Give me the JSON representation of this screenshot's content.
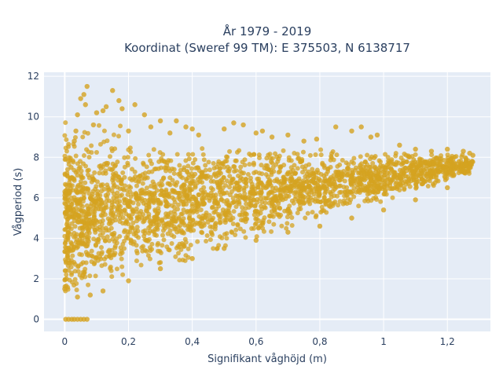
{
  "chart_data": {
    "type": "scatter",
    "title_line1": "År 1979 - 2019",
    "title_line2": "Koordinat (Sweref 99 TM): E 375503, N 6138717",
    "xlabel": "Signifikant våghöjd (m)",
    "ylabel": "Vågperiod (s)",
    "xlim": [
      -0.065,
      1.335
    ],
    "ylim": [
      -0.6,
      12.2
    ],
    "x_ticks": [
      0,
      0.2,
      0.4,
      0.6,
      0.8,
      1.0,
      1.2
    ],
    "x_tick_labels": [
      "0",
      "0,2",
      "0,4",
      "0,6",
      "0,8",
      "1",
      "1,2"
    ],
    "y_ticks": [
      0,
      2,
      4,
      6,
      8,
      10,
      12
    ],
    "y_tick_labels": [
      "0",
      "2",
      "4",
      "6",
      "8",
      "10",
      "12"
    ],
    "grid": true,
    "legend": "none",
    "marker_color": "#d4a320",
    "plot_background": "#e5ecf6",
    "points": [
      [
        0.003,
        0.0
      ],
      [
        0.012,
        0.0
      ],
      [
        0.022,
        0.0
      ],
      [
        0.03,
        0.0
      ],
      [
        0.04,
        0.0
      ],
      [
        0.05,
        0.0
      ],
      [
        0.06,
        0.0
      ],
      [
        0.07,
        0.0
      ],
      [
        0.0,
        1.5
      ],
      [
        0.005,
        2.0
      ],
      [
        0.01,
        3.3
      ],
      [
        0.012,
        4.6
      ],
      [
        0.015,
        6.3
      ],
      [
        0.02,
        7.5
      ],
      [
        0.03,
        8.8
      ],
      [
        0.035,
        9.3
      ],
      [
        0.04,
        10.1
      ],
      [
        0.05,
        10.9
      ],
      [
        0.06,
        11.1
      ],
      [
        0.065,
        10.6
      ],
      [
        0.07,
        11.5
      ],
      [
        0.09,
        9.6
      ],
      [
        0.1,
        10.2
      ],
      [
        0.12,
        10.3
      ],
      [
        0.13,
        10.5
      ],
      [
        0.15,
        11.3
      ],
      [
        0.17,
        10.8
      ],
      [
        0.18,
        10.4
      ],
      [
        0.2,
        9.3
      ],
      [
        0.22,
        10.6
      ],
      [
        0.25,
        10.1
      ],
      [
        0.27,
        9.5
      ],
      [
        0.3,
        9.8
      ],
      [
        0.33,
        9.2
      ],
      [
        0.35,
        9.8
      ],
      [
        0.38,
        9.5
      ],
      [
        0.4,
        9.4
      ],
      [
        0.42,
        9.1
      ],
      [
        0.5,
        9.4
      ],
      [
        0.53,
        9.7
      ],
      [
        0.56,
        9.6
      ],
      [
        0.6,
        9.2
      ],
      [
        0.62,
        9.3
      ],
      [
        0.65,
        9.0
      ],
      [
        0.7,
        9.1
      ],
      [
        0.75,
        8.8
      ],
      [
        0.79,
        8.9
      ],
      [
        0.85,
        9.5
      ],
      [
        0.9,
        9.3
      ],
      [
        0.93,
        9.5
      ],
      [
        0.96,
        9.0
      ],
      [
        0.98,
        9.1
      ],
      [
        1.05,
        8.6
      ],
      [
        1.1,
        8.4
      ],
      [
        1.15,
        8.3
      ],
      [
        1.2,
        8.4
      ],
      [
        1.25,
        8.3
      ],
      [
        1.27,
        8.2
      ],
      [
        0.04,
        1.1
      ],
      [
        0.08,
        1.2
      ],
      [
        0.12,
        1.4
      ],
      [
        0.2,
        1.9
      ],
      [
        0.3,
        2.5
      ],
      [
        0.4,
        3.0
      ],
      [
        0.5,
        3.5
      ],
      [
        0.6,
        3.9
      ],
      [
        0.7,
        4.3
      ],
      [
        0.8,
        4.6
      ],
      [
        0.9,
        5.0
      ],
      [
        1.0,
        5.4
      ],
      [
        1.1,
        5.9
      ],
      [
        1.2,
        6.5
      ],
      [
        1.27,
        7.5
      ],
      [
        1.28,
        8.1
      ]
    ]
  }
}
